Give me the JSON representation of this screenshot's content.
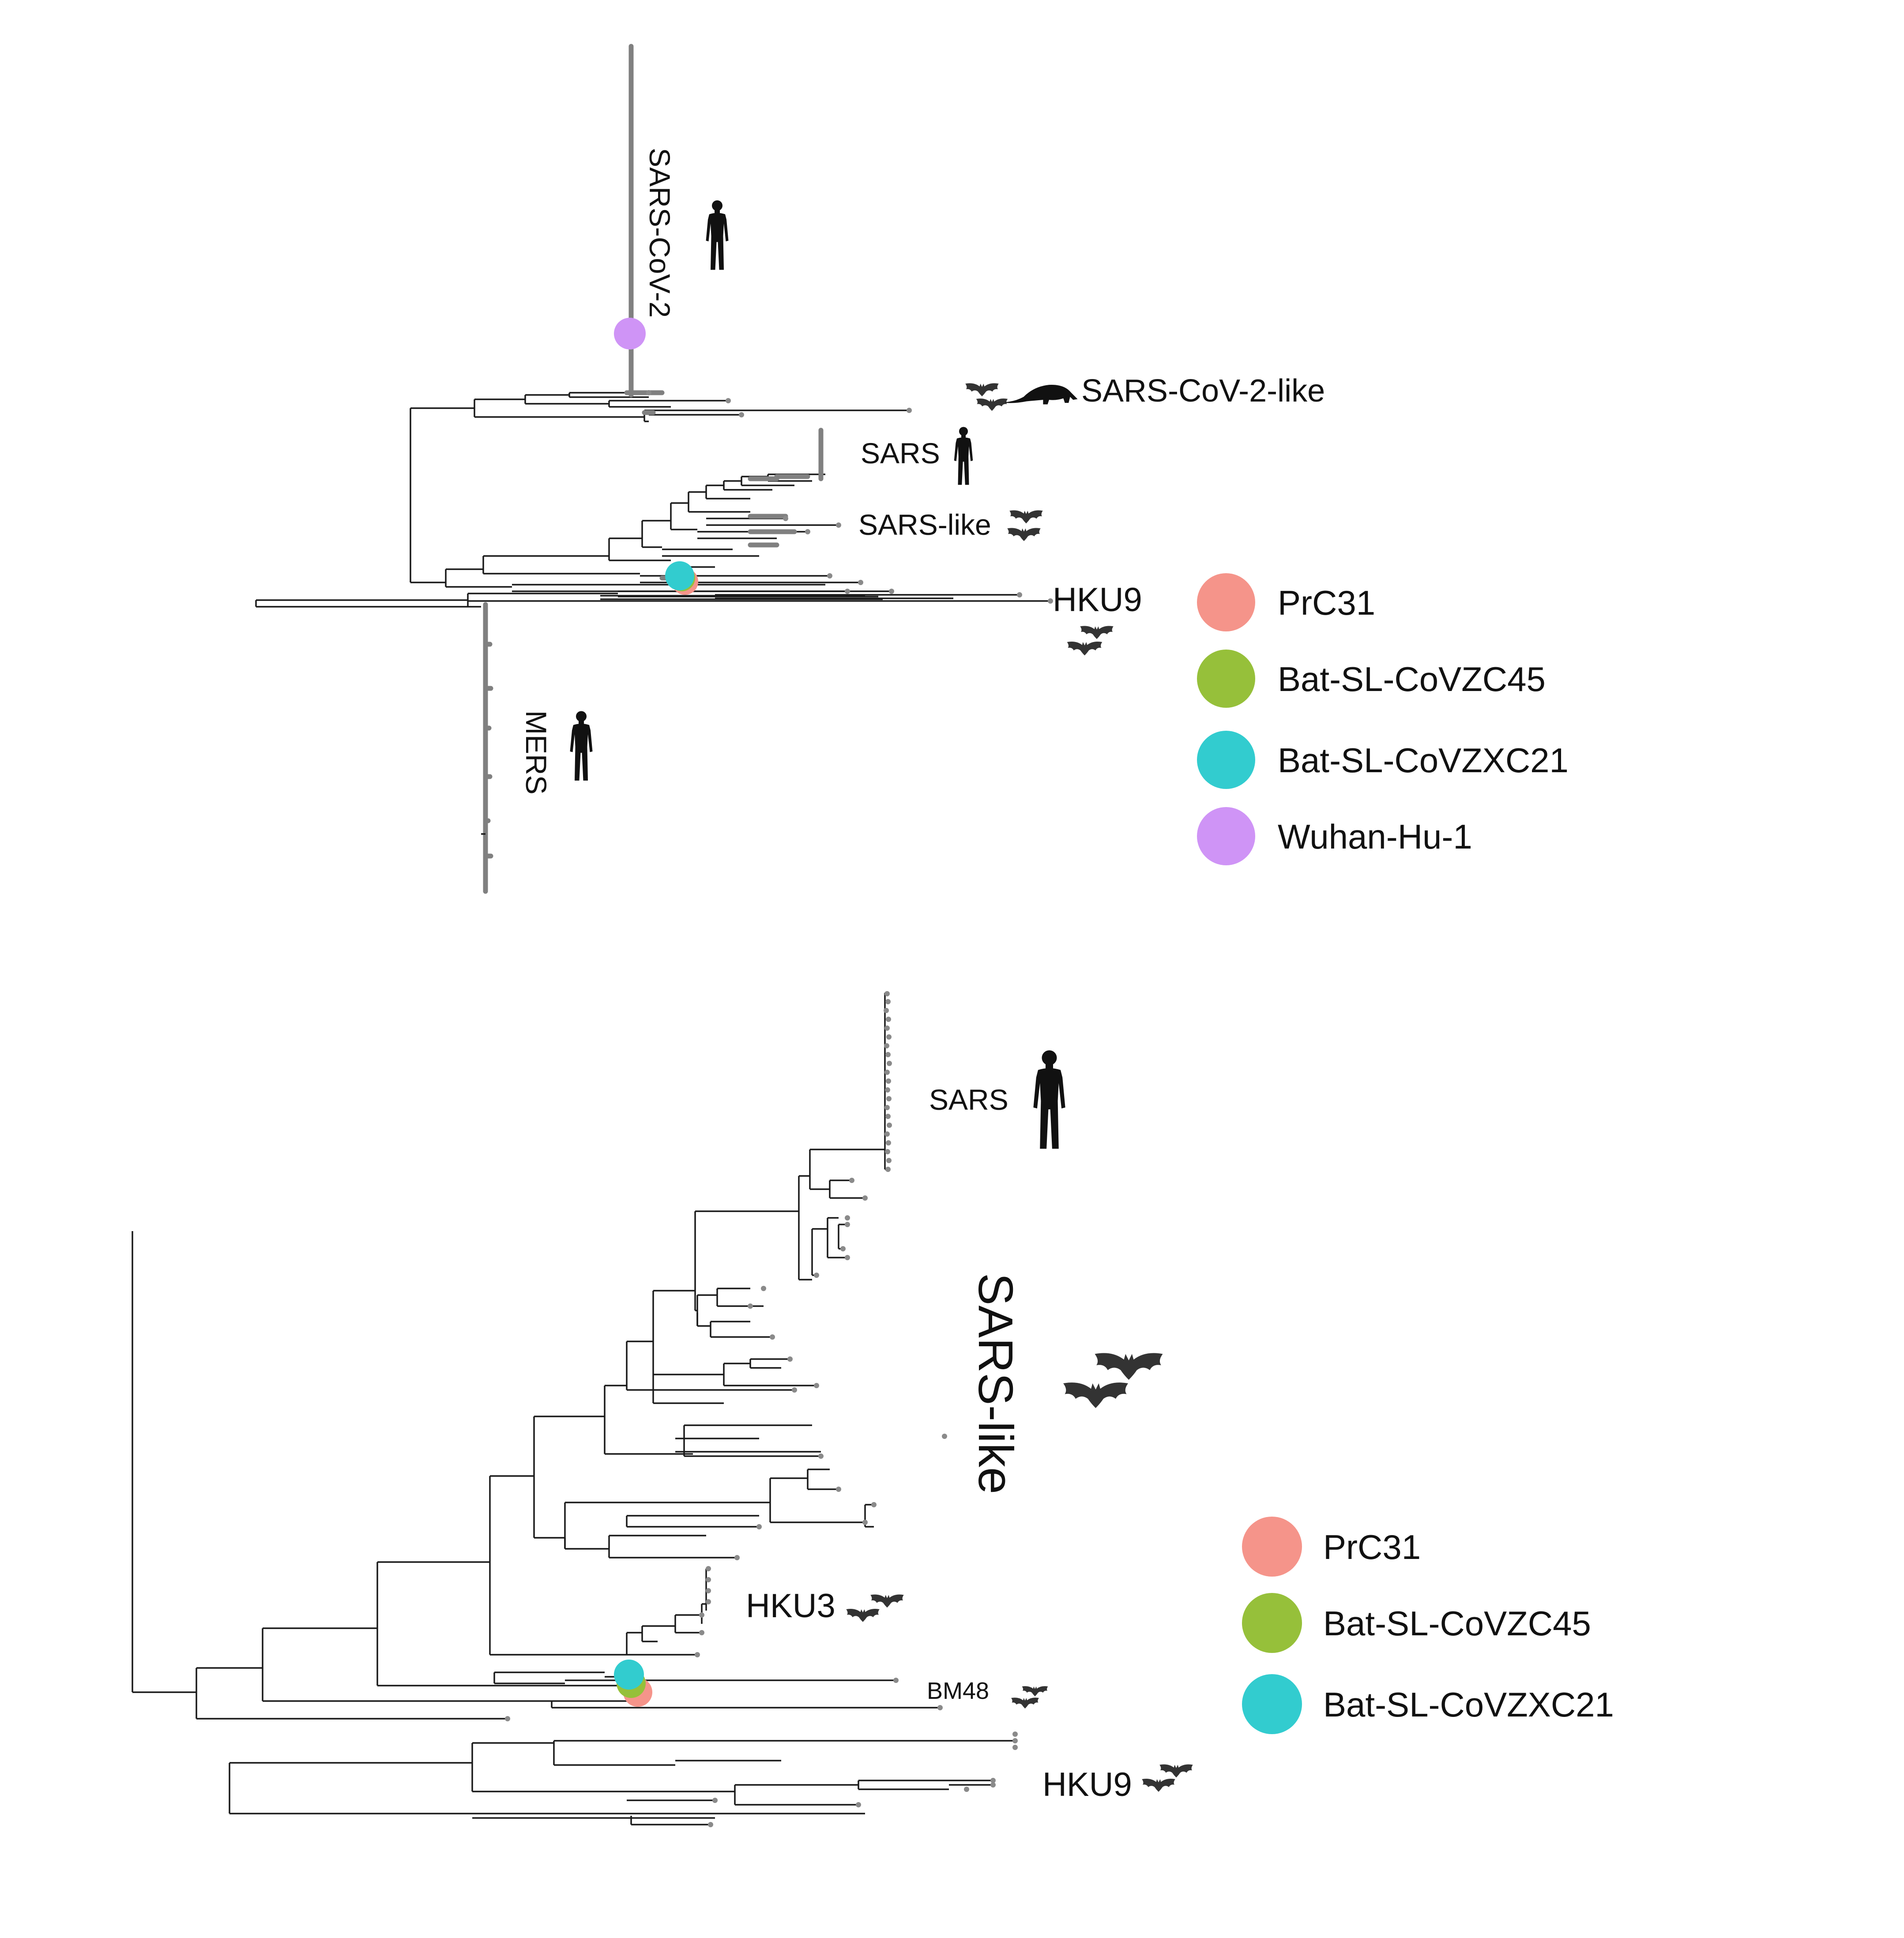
{
  "colors": {
    "PrC31": "#f5948a",
    "Bat-SL-CoVZC45": "#96c03a",
    "Bat-SL-CoVZXC21": "#32cccf",
    "Wuhan-Hu-1": "#cf94f6",
    "branch": "#1a1a1a",
    "collapsed_branch": "#808080"
  },
  "top_panel": {
    "clade_labels": {
      "sars_cov_2": "SARS-CoV-2",
      "sars_cov_2_like": "SARS-CoV-2-like",
      "sars": "SARS",
      "sars_like": "SARS-like",
      "hku9": "HKU9",
      "mers": "MERS"
    },
    "host_icons": [
      "human-icon",
      "bat-icon",
      "pangolin-icon"
    ],
    "legend": [
      {
        "label": "PrC31",
        "color": "#f5948a"
      },
      {
        "label": "Bat-SL-CoVZC45",
        "color": "#96c03a"
      },
      {
        "label": "Bat-SL-CoVZXC21",
        "color": "#32cccf"
      },
      {
        "label": "Wuhan-Hu-1",
        "color": "#cf94f6"
      }
    ]
  },
  "bottom_panel": {
    "clade_labels": {
      "sars": "SARS",
      "sars_like": "SARS-like",
      "hku3": "HKU3",
      "bm48": "BM48",
      "hku9": "HKU9"
    },
    "host_icons": [
      "human-icon",
      "bat-icon"
    ],
    "legend": [
      {
        "label": "PrC31",
        "color": "#f5948a"
      },
      {
        "label": "Bat-SL-CoVZC45",
        "color": "#96c03a"
      },
      {
        "label": "Bat-SL-CoVZXC21",
        "color": "#32cccf"
      }
    ]
  }
}
